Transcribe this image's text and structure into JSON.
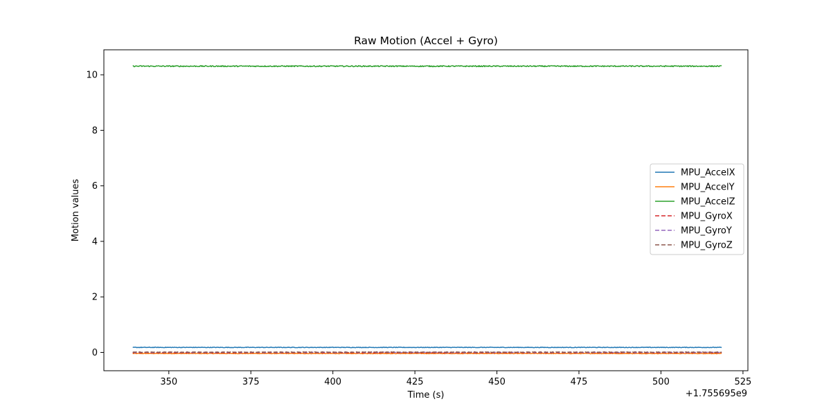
{
  "chart_data": {
    "type": "line",
    "title": "Raw Motion (Accel + Gyro)",
    "xlabel": "Time (s)",
    "ylabel": "Motion values",
    "x_offset_label": "+1.755695e9",
    "xlim": [
      330.2,
      526.5
    ],
    "ylim": [
      -0.66,
      10.9
    ],
    "x_range": [
      339,
      518.5
    ],
    "x_ticks": [
      350,
      375,
      400,
      425,
      450,
      475,
      500,
      525
    ],
    "y_ticks": [
      0,
      2,
      4,
      6,
      8,
      10
    ],
    "grid": false,
    "legend_position": "center-right",
    "series": [
      {
        "name": "MPU_AccelX",
        "level": 0.18,
        "color": "#1f77b4",
        "style": "solid"
      },
      {
        "name": "MPU_AccelY",
        "level": -0.04,
        "color": "#ff7f0e",
        "style": "solid"
      },
      {
        "name": "MPU_AccelZ",
        "level": 10.31,
        "color": "#2ca02c",
        "style": "solid"
      },
      {
        "name": "MPU_GyroX",
        "level": -0.01,
        "color": "#d62728",
        "style": "dashed"
      },
      {
        "name": "MPU_GyroY",
        "level": 0.0,
        "color": "#9467bd",
        "style": "dashed"
      },
      {
        "name": "MPU_GyroZ",
        "level": 0.01,
        "color": "#8c564b",
        "style": "dashed"
      }
    ]
  }
}
